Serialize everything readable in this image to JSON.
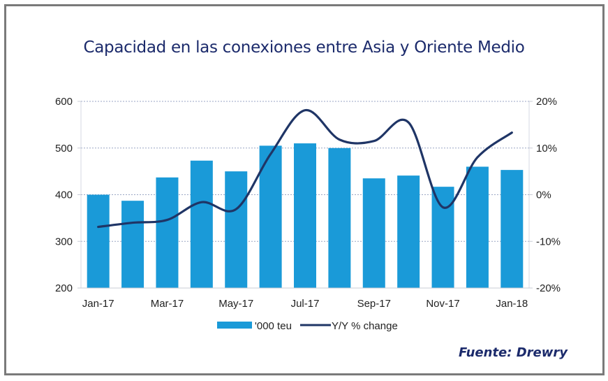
{
  "title": "Capacidad en las conexiones entre Asia y Oriente Medio",
  "source": "Fuente: Drewry",
  "colors": {
    "bar": "#1a9ad8",
    "line": "#1f3566",
    "title": "#1b2a6b",
    "grid": "#9aa6c4",
    "frame": "#7a7a7a"
  },
  "chart_data": {
    "type": "bar",
    "title": "Capacidad en las conexiones entre Asia y Oriente Medio",
    "categories": [
      "Jan-17",
      "Feb-17",
      "Mar-17",
      "Apr-17",
      "May-17",
      "Jun-17",
      "Jul-17",
      "Aug-17",
      "Sep-17",
      "Oct-17",
      "Nov-17",
      "Dec-17",
      "Jan-18"
    ],
    "x_tick_labels": [
      "Jan-17",
      "Mar-17",
      "May-17",
      "Jul-17",
      "Sep-17",
      "Nov-17",
      "Jan-18"
    ],
    "series": [
      {
        "name": "'000 teu",
        "type": "bar",
        "axis": "left",
        "values": [
          400,
          387,
          437,
          473,
          450,
          505,
          510,
          500,
          435,
          441,
          417,
          460,
          453
        ]
      },
      {
        "name": "Y/Y % change",
        "type": "line",
        "axis": "right",
        "values": [
          -6.9,
          -6.0,
          -5.4,
          -1.6,
          -3.1,
          8.7,
          18.1,
          11.8,
          11.5,
          15.5,
          -2.7,
          8.0,
          13.3
        ]
      }
    ],
    "left_axis": {
      "ylim": [
        200,
        600
      ],
      "ticks": [
        200,
        300,
        400,
        500,
        600
      ],
      "tick_labels": [
        "200",
        "300",
        "400",
        "500",
        "600"
      ]
    },
    "right_axis": {
      "ylim": [
        -20,
        20
      ],
      "ticks": [
        -20,
        -10,
        0,
        10,
        20
      ],
      "tick_labels": [
        "-20%",
        "-10%",
        "0%",
        "10%",
        "20%"
      ]
    },
    "xlabel": "",
    "ylabel": "",
    "grid": true,
    "legend_position": "bottom"
  }
}
